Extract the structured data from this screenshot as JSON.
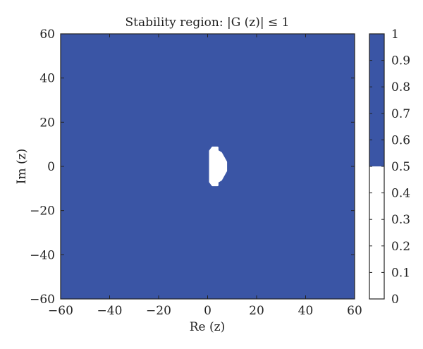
{
  "chart_data": {
    "type": "heatmap",
    "title": "Stability region: |G (z)| ≤ 1",
    "xlabel": "Re (z)",
    "ylabel": "Im (z)",
    "xlim": [
      -60,
      60
    ],
    "ylim": [
      -60,
      60
    ],
    "xticks": [
      "−60",
      "−40",
      "−20",
      "0",
      "20",
      "40",
      "60"
    ],
    "yticks": [
      "60",
      "40",
      "20",
      "0",
      "−20",
      "−40",
      "−60"
    ],
    "xtick_values": [
      -60,
      -40,
      -20,
      0,
      20,
      40,
      60
    ],
    "ytick_values": [
      60,
      40,
      20,
      0,
      -20,
      -40,
      -60
    ],
    "fill_value": 1,
    "fill_color": "#3a55a5",
    "unstable_color": "#ffffff",
    "unstable_region": {
      "value": 0,
      "description_points_re_im": [
        [
          2,
          8.5
        ],
        [
          4,
          8.5
        ],
        [
          4,
          7
        ],
        [
          5.5,
          6
        ],
        [
          6.5,
          4
        ],
        [
          7.5,
          2
        ],
        [
          7.5,
          -2
        ],
        [
          6.5,
          -4
        ],
        [
          5.5,
          -6
        ],
        [
          4,
          -7
        ],
        [
          4,
          -8.5
        ],
        [
          2,
          -8.5
        ],
        [
          1,
          -7
        ],
        [
          1,
          7
        ]
      ]
    },
    "colorbar": {
      "min": 0,
      "max": 1,
      "ticks": [
        "0",
        "0.1",
        "0.2",
        "0.3",
        "0.4",
        "0.5",
        "0.6",
        "0.7",
        "0.8",
        "0.9",
        "1"
      ],
      "tick_values": [
        0,
        0.1,
        0.2,
        0.3,
        0.4,
        0.5,
        0.6,
        0.7,
        0.8,
        0.9,
        1
      ],
      "threshold": 0.5,
      "lower_color": "#ffffff",
      "upper_color": "#3a55a5"
    }
  }
}
